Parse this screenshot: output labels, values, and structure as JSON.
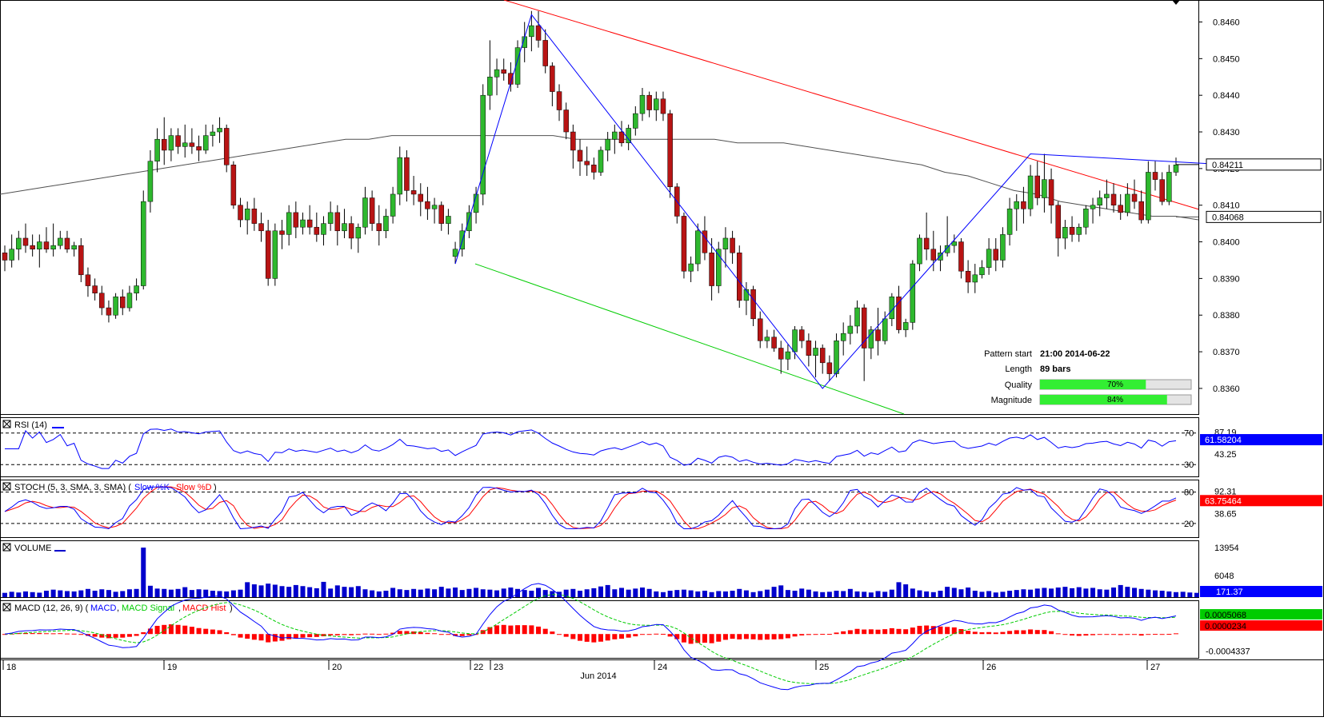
{
  "instrument_price_axis": [
    "0.8460",
    "0.8450",
    "0.8440",
    "0.8430",
    "0.8420",
    "0.8410",
    "0.8400",
    "0.8390",
    "0.8380",
    "0.8370",
    "0.8360"
  ],
  "price_badges": {
    "last": "0.84211",
    "ma": "0.84068"
  },
  "pattern_info": {
    "start_label": "Pattern start",
    "start_value": "21:00 2014-06-22",
    "length_label": "Length",
    "length_value": "89 bars",
    "quality_label": "Quality",
    "quality_value": "70%",
    "quality_fraction": 0.7,
    "magnitude_label": "Magnitude",
    "magnitude_value": "84%",
    "magnitude_fraction": 0.84
  },
  "panels": {
    "rsi": {
      "title": "RSI (14)",
      "levels": [
        "70",
        "30"
      ],
      "mid": "43.25",
      "top_partial": "87.19",
      "badge": "61.58204"
    },
    "stoch": {
      "title_prefix": "STOCH (5, 3, SMA, 3, SMA)",
      "k_label": "Slow %K",
      "d_label": "Slow %D",
      "levels": [
        "80",
        "20"
      ],
      "mid": "38.65",
      "top_partial": "92.31",
      "badge": "63.75464"
    },
    "volume": {
      "title": "VOLUME",
      "ticks": [
        "13954",
        "6048"
      ],
      "badge": "171.37"
    },
    "macd": {
      "title_prefix": "MACD (12, 26, 9)",
      "line_label": "MACD",
      "signal_label": "MACD Signal",
      "hist_label": "MACD Hist",
      "ticks": [
        "-0.0004337"
      ],
      "badges": [
        "0.0005068",
        "0.0000234"
      ]
    }
  },
  "x_axis": {
    "labels": [
      "18",
      "19",
      "20",
      "22",
      "23",
      "24",
      "25",
      "26",
      "27"
    ],
    "month": "Jun 2014"
  },
  "colors": {
    "up": "#2eb82e",
    "down": "#b81414",
    "resistance": "#ff0000",
    "support": "#00cc00",
    "pattern": "#0000ff",
    "ma": "#505050",
    "rsi": "#0000ff",
    "k": "#0000ff",
    "d": "#ff0000",
    "volume": "#0000cc",
    "macd": "#0000ff",
    "signal": "#00cc00",
    "hist": "#ff0000"
  },
  "chart_data": {
    "type": "candlestick",
    "pair_scale": {
      "ylim": [
        0.8353,
        0.8466
      ]
    },
    "pattern_points": [
      {
        "label": "start",
        "price": 0.8394
      },
      {
        "label": "high",
        "price": 0.8462
      },
      {
        "label": "low",
        "price": 0.836
      },
      {
        "label": "swing-high",
        "price": 0.8424
      },
      {
        "label": "current",
        "price": 0.84211
      }
    ],
    "resistance_line": [
      0.8466,
      0.8415
    ],
    "support_line": [
      0.8394,
      0.8356
    ],
    "candles": [
      [
        0.8397,
        0.8399,
        0.8392,
        0.8395
      ],
      [
        0.8395,
        0.8402,
        0.8393,
        0.8398
      ],
      [
        0.8398,
        0.8403,
        0.8395,
        0.8401
      ],
      [
        0.8401,
        0.8405,
        0.8397,
        0.8399
      ],
      [
        0.8399,
        0.8402,
        0.8396,
        0.8398
      ],
      [
        0.8398,
        0.8402,
        0.8393,
        0.84
      ],
      [
        0.84,
        0.8404,
        0.8397,
        0.8398
      ],
      [
        0.8398,
        0.8405,
        0.8396,
        0.8399
      ],
      [
        0.8399,
        0.8403,
        0.8398,
        0.8401
      ],
      [
        0.8401,
        0.8403,
        0.8397,
        0.8398
      ],
      [
        0.8398,
        0.84,
        0.8396,
        0.8399
      ],
      [
        0.8399,
        0.8401,
        0.8389,
        0.8391
      ],
      [
        0.8391,
        0.8393,
        0.8385,
        0.8388
      ],
      [
        0.8388,
        0.839,
        0.8384,
        0.8386
      ],
      [
        0.8386,
        0.8388,
        0.838,
        0.8382
      ],
      [
        0.8382,
        0.8384,
        0.8378,
        0.838
      ],
      [
        0.838,
        0.8386,
        0.8379,
        0.8385
      ],
      [
        0.8385,
        0.8387,
        0.838,
        0.8382
      ],
      [
        0.8382,
        0.8388,
        0.8381,
        0.8386
      ],
      [
        0.8386,
        0.839,
        0.8384,
        0.8388
      ],
      [
        0.8388,
        0.8414,
        0.8387,
        0.8411
      ],
      [
        0.8411,
        0.8425,
        0.8408,
        0.8422
      ],
      [
        0.8422,
        0.8431,
        0.8419,
        0.8428
      ],
      [
        0.8428,
        0.8434,
        0.8421,
        0.8425
      ],
      [
        0.8425,
        0.8431,
        0.8422,
        0.8429
      ],
      [
        0.8429,
        0.8431,
        0.8424,
        0.8426
      ],
      [
        0.8426,
        0.8432,
        0.8423,
        0.8427
      ],
      [
        0.8427,
        0.8431,
        0.8424,
        0.8426
      ],
      [
        0.8426,
        0.8429,
        0.8422,
        0.8425
      ],
      [
        0.8425,
        0.8432,
        0.8424,
        0.8429
      ],
      [
        0.8429,
        0.8432,
        0.8426,
        0.843
      ],
      [
        0.843,
        0.8434,
        0.8427,
        0.8431
      ],
      [
        0.8431,
        0.8432,
        0.8419,
        0.8421
      ],
      [
        0.8421,
        0.8422,
        0.8409,
        0.841
      ],
      [
        0.841,
        0.8412,
        0.8404,
        0.8406
      ],
      [
        0.8406,
        0.8411,
        0.8402,
        0.8409
      ],
      [
        0.8409,
        0.8412,
        0.8403,
        0.8405
      ],
      [
        0.8405,
        0.8408,
        0.84,
        0.8403
      ],
      [
        0.8403,
        0.8406,
        0.8388,
        0.839
      ],
      [
        0.839,
        0.8405,
        0.8388,
        0.8403
      ],
      [
        0.8403,
        0.8406,
        0.8398,
        0.8402
      ],
      [
        0.8402,
        0.841,
        0.8399,
        0.8408
      ],
      [
        0.8408,
        0.8411,
        0.8401,
        0.8404
      ],
      [
        0.8404,
        0.8408,
        0.8402,
        0.8406
      ],
      [
        0.8406,
        0.841,
        0.8402,
        0.8404
      ],
      [
        0.8404,
        0.8408,
        0.84,
        0.8402
      ],
      [
        0.8402,
        0.8407,
        0.8399,
        0.8405
      ],
      [
        0.8405,
        0.8411,
        0.8403,
        0.8408
      ],
      [
        0.8408,
        0.841,
        0.8399,
        0.8403
      ],
      [
        0.8403,
        0.8409,
        0.8401,
        0.8405
      ],
      [
        0.8405,
        0.8407,
        0.8398,
        0.8401
      ],
      [
        0.8401,
        0.8405,
        0.8397,
        0.8404
      ],
      [
        0.8404,
        0.8415,
        0.8402,
        0.8412
      ],
      [
        0.8412,
        0.8414,
        0.8403,
        0.8405
      ],
      [
        0.8405,
        0.841,
        0.8399,
        0.8403
      ],
      [
        0.8403,
        0.8409,
        0.8401,
        0.8407
      ],
      [
        0.8407,
        0.8415,
        0.8405,
        0.8413
      ],
      [
        0.8413,
        0.8426,
        0.841,
        0.8423
      ],
      [
        0.8423,
        0.8425,
        0.8411,
        0.8414
      ],
      [
        0.8414,
        0.8418,
        0.841,
        0.8413
      ],
      [
        0.8413,
        0.8416,
        0.8407,
        0.8411
      ],
      [
        0.8411,
        0.8415,
        0.8406,
        0.8409
      ],
      [
        0.8409,
        0.8412,
        0.8405,
        0.841
      ],
      [
        0.841,
        0.8411,
        0.8403,
        0.8405
      ],
      [
        0.8405,
        0.8409,
        0.8402,
        0.8407
      ],
      [
        0.8396,
        0.84,
        0.8394,
        0.8398
      ],
      [
        0.8398,
        0.8405,
        0.8396,
        0.8403
      ],
      [
        0.8403,
        0.841,
        0.8401,
        0.8408
      ],
      [
        0.8408,
        0.8415,
        0.8405,
        0.8413
      ],
      [
        0.8413,
        0.8443,
        0.841,
        0.844
      ],
      [
        0.844,
        0.8455,
        0.8436,
        0.8445
      ],
      [
        0.8445,
        0.845,
        0.844,
        0.8447
      ],
      [
        0.8447,
        0.845,
        0.8444,
        0.8446
      ],
      [
        0.8446,
        0.8449,
        0.8441,
        0.8443
      ],
      [
        0.8443,
        0.8455,
        0.8442,
        0.8453
      ],
      [
        0.8453,
        0.846,
        0.8449,
        0.8456
      ],
      [
        0.8456,
        0.8463,
        0.8452,
        0.8459
      ],
      [
        0.8459,
        0.8463,
        0.8453,
        0.8455
      ],
      [
        0.8455,
        0.8458,
        0.8446,
        0.8448
      ],
      [
        0.8448,
        0.8449,
        0.8437,
        0.8441
      ],
      [
        0.8441,
        0.8443,
        0.8433,
        0.8436
      ],
      [
        0.8436,
        0.8438,
        0.8428,
        0.843
      ],
      [
        0.843,
        0.8432,
        0.842,
        0.8425
      ],
      [
        0.8425,
        0.8428,
        0.8418,
        0.8422
      ],
      [
        0.8422,
        0.8426,
        0.8418,
        0.8421
      ],
      [
        0.8421,
        0.8423,
        0.8417,
        0.8419
      ],
      [
        0.8419,
        0.8426,
        0.8418,
        0.8425
      ],
      [
        0.8425,
        0.843,
        0.8422,
        0.8428
      ],
      [
        0.8428,
        0.8432,
        0.8424,
        0.843
      ],
      [
        0.843,
        0.8433,
        0.8426,
        0.8427
      ],
      [
        0.8427,
        0.8432,
        0.8425,
        0.8431
      ],
      [
        0.8431,
        0.8437,
        0.8429,
        0.8435
      ],
      [
        0.8435,
        0.8442,
        0.8433,
        0.844
      ],
      [
        0.844,
        0.8441,
        0.8434,
        0.8436
      ],
      [
        0.8436,
        0.8441,
        0.8433,
        0.8439
      ],
      [
        0.8439,
        0.8441,
        0.8433,
        0.8435
      ],
      [
        0.8435,
        0.8436,
        0.8412,
        0.8415
      ],
      [
        0.8415,
        0.8416,
        0.8405,
        0.8407
      ],
      [
        0.8407,
        0.8408,
        0.839,
        0.8392
      ],
      [
        0.8392,
        0.8396,
        0.8389,
        0.8394
      ],
      [
        0.8394,
        0.8405,
        0.8392,
        0.8403
      ],
      [
        0.8403,
        0.8407,
        0.8395,
        0.8397
      ],
      [
        0.8397,
        0.8401,
        0.8384,
        0.8388
      ],
      [
        0.8388,
        0.84,
        0.8386,
        0.8398
      ],
      [
        0.8398,
        0.8404,
        0.8393,
        0.8401
      ],
      [
        0.8401,
        0.8403,
        0.8394,
        0.8397
      ],
      [
        0.8397,
        0.8399,
        0.8382,
        0.8384
      ],
      [
        0.8384,
        0.8389,
        0.838,
        0.8387
      ],
      [
        0.8387,
        0.8388,
        0.8377,
        0.8379
      ],
      [
        0.8379,
        0.8381,
        0.8371,
        0.8373
      ],
      [
        0.8373,
        0.8376,
        0.8371,
        0.8374
      ],
      [
        0.8374,
        0.8376,
        0.837,
        0.8371
      ],
      [
        0.8371,
        0.8373,
        0.8364,
        0.8368
      ],
      [
        0.8368,
        0.8372,
        0.8365,
        0.837
      ],
      [
        0.837,
        0.8377,
        0.8368,
        0.8376
      ],
      [
        0.8376,
        0.8377,
        0.8371,
        0.8373
      ],
      [
        0.8373,
        0.8375,
        0.8366,
        0.8369
      ],
      [
        0.8369,
        0.8373,
        0.8363,
        0.8371
      ],
      [
        0.8371,
        0.8372,
        0.8364,
        0.8367
      ],
      [
        0.8367,
        0.8369,
        0.8362,
        0.8364
      ],
      [
        0.8364,
        0.8375,
        0.8363,
        0.8373
      ],
      [
        0.8373,
        0.8378,
        0.8369,
        0.8375
      ],
      [
        0.8375,
        0.838,
        0.8372,
        0.8377
      ],
      [
        0.8377,
        0.8384,
        0.8375,
        0.8382
      ],
      [
        0.8382,
        0.8383,
        0.8362,
        0.8371
      ],
      [
        0.8371,
        0.8377,
        0.8368,
        0.8376
      ],
      [
        0.8376,
        0.8382,
        0.8369,
        0.8373
      ],
      [
        0.8373,
        0.8381,
        0.8372,
        0.8379
      ],
      [
        0.8379,
        0.8386,
        0.8377,
        0.8385
      ],
      [
        0.8385,
        0.8388,
        0.8375,
        0.8376
      ],
      [
        0.8376,
        0.8379,
        0.8374,
        0.8378
      ],
      [
        0.8378,
        0.8395,
        0.8376,
        0.8394
      ],
      [
        0.8394,
        0.8402,
        0.8392,
        0.8401
      ],
      [
        0.8401,
        0.8408,
        0.8395,
        0.8398
      ],
      [
        0.8398,
        0.8403,
        0.8392,
        0.8395
      ],
      [
        0.8395,
        0.8399,
        0.8392,
        0.8397
      ],
      [
        0.8397,
        0.8407,
        0.8396,
        0.8399
      ],
      [
        0.8399,
        0.8402,
        0.8397,
        0.84
      ],
      [
        0.84,
        0.8401,
        0.839,
        0.8392
      ],
      [
        0.8392,
        0.8395,
        0.8386,
        0.8389
      ],
      [
        0.8389,
        0.8394,
        0.8386,
        0.8391
      ],
      [
        0.8391,
        0.8395,
        0.839,
        0.8393
      ],
      [
        0.8393,
        0.8401,
        0.8391,
        0.8398
      ],
      [
        0.8398,
        0.8401,
        0.8392,
        0.8395
      ],
      [
        0.8395,
        0.8404,
        0.8393,
        0.8402
      ],
      [
        0.8402,
        0.8412,
        0.8399,
        0.8409
      ],
      [
        0.8409,
        0.8413,
        0.8403,
        0.8411
      ],
      [
        0.8411,
        0.8415,
        0.8405,
        0.8409
      ],
      [
        0.8409,
        0.8421,
        0.8407,
        0.8418
      ],
      [
        0.8418,
        0.8422,
        0.841,
        0.8412
      ],
      [
        0.8412,
        0.8424,
        0.8408,
        0.8417
      ],
      [
        0.8417,
        0.842,
        0.8405,
        0.841
      ],
      [
        0.841,
        0.8411,
        0.8396,
        0.8401
      ],
      [
        0.8401,
        0.8406,
        0.8398,
        0.8404
      ],
      [
        0.8404,
        0.8407,
        0.84,
        0.8402
      ],
      [
        0.8402,
        0.8405,
        0.84,
        0.8404
      ],
      [
        0.8404,
        0.841,
        0.8402,
        0.8409
      ],
      [
        0.8409,
        0.8412,
        0.8405,
        0.841
      ],
      [
        0.841,
        0.8414,
        0.8407,
        0.8412
      ],
      [
        0.8412,
        0.8417,
        0.8409,
        0.8413
      ],
      [
        0.8413,
        0.8416,
        0.8408,
        0.841
      ],
      [
        0.841,
        0.8413,
        0.8406,
        0.8408
      ],
      [
        0.8408,
        0.8416,
        0.8407,
        0.8413
      ],
      [
        0.8413,
        0.8417,
        0.8409,
        0.8411
      ],
      [
        0.8411,
        0.8414,
        0.8405,
        0.8406
      ],
      [
        0.8406,
        0.8422,
        0.8405,
        0.8419
      ],
      [
        0.8419,
        0.8422,
        0.8414,
        0.8417
      ],
      [
        0.8417,
        0.8419,
        0.841,
        0.8411
      ],
      [
        0.8411,
        0.8421,
        0.841,
        0.8419
      ],
      [
        0.8419,
        0.8423,
        0.8418,
        0.8421
      ]
    ],
    "ma": [
      0.8413,
      0.8414,
      0.8415,
      0.8416,
      0.8417,
      0.8418,
      0.8419,
      0.842,
      0.8421,
      0.8422,
      0.8423,
      0.8424,
      0.8425,
      0.8426,
      0.8427,
      0.8428,
      0.8428,
      0.8429,
      0.8429,
      0.8429,
      0.8429,
      0.8429,
      0.8429,
      0.8429,
      0.8429,
      0.8428,
      0.8428,
      0.8428,
      0.8428,
      0.8428,
      0.8428,
      0.8428,
      0.8427,
      0.8427,
      0.8427,
      0.8426,
      0.8425,
      0.8424,
      0.8423,
      0.8422,
      0.8421,
      0.8419,
      0.8418,
      0.8416,
      0.8414,
      0.8413,
      0.8411,
      0.841,
      0.8409,
      0.8408,
      0.8407,
      0.8407,
      0.8406
    ],
    "rsi_level": 61.58,
    "stoch_levels": {
      "k": 63.75,
      "d": 63.75
    },
    "volume": [
      1200,
      1500,
      1300,
      1600,
      1400,
      1250,
      1800,
      2100,
      1900,
      1700,
      1600,
      1900,
      2300,
      1800,
      2200,
      2000,
      1500,
      1700,
      2200,
      2300,
      13954,
      3200,
      2400,
      2300,
      2100,
      2300,
      2800,
      2000,
      2200,
      2100,
      1800,
      1700,
      1600,
      1900,
      2100,
      4200,
      3600,
      3300,
      3800,
      3500,
      3100,
      2900,
      3400,
      3100,
      2800,
      2500,
      4300,
      2400,
      3300,
      2900,
      2800,
      3100,
      2200,
      1900,
      1600,
      1800,
      2600,
      2200,
      2000,
      2300,
      2100,
      2400,
      2200,
      2900,
      2400,
      2700,
      2000,
      2300,
      2600,
      2200,
      2100,
      1900,
      2400,
      2700,
      2300,
      2000,
      1800,
      2600,
      2000,
      1700,
      1500,
      2100,
      2300,
      1800,
      2200,
      2500,
      3000,
      3400,
      2200,
      2600,
      2100,
      2400,
      2700,
      2300,
      1600,
      1400,
      1800,
      2000,
      2100,
      1900,
      1600,
      1800,
      1400,
      1700,
      1600,
      1800,
      2300,
      1900,
      1400,
      1700,
      2100,
      2900,
      3300,
      2000,
      1800,
      2400,
      2100,
      1600,
      1400,
      1500,
      1800,
      1700,
      2300,
      1600,
      1500,
      1300,
      1700,
      1500,
      2100,
      4200,
      3600,
      2400,
      1900,
      1600,
      1400,
      1800,
      2900,
      2600,
      2200,
      2700,
      1800,
      1500,
      1700,
      1300,
      1500,
      1800,
      2000,
      2200,
      2100,
      2400,
      2600,
      2400,
      2700,
      2900,
      2500,
      2800,
      2400,
      2600,
      2200,
      2100,
      2700,
      3400,
      2900,
      2600,
      2300,
      2100,
      1900,
      1800,
      1600,
      1400,
      1500,
      1300,
      1200,
      1400,
      1500,
      1400,
      1300,
      1100,
      1000,
      1200,
      1500,
      1400,
      1200,
      1400,
      1100,
      1300
    ],
    "macd_range": [
      -0.0004337,
      0.0006
    ],
    "x_ticks": [
      "18",
      "19",
      "20",
      "22",
      "23",
      "24",
      "25",
      "26",
      "27"
    ]
  }
}
